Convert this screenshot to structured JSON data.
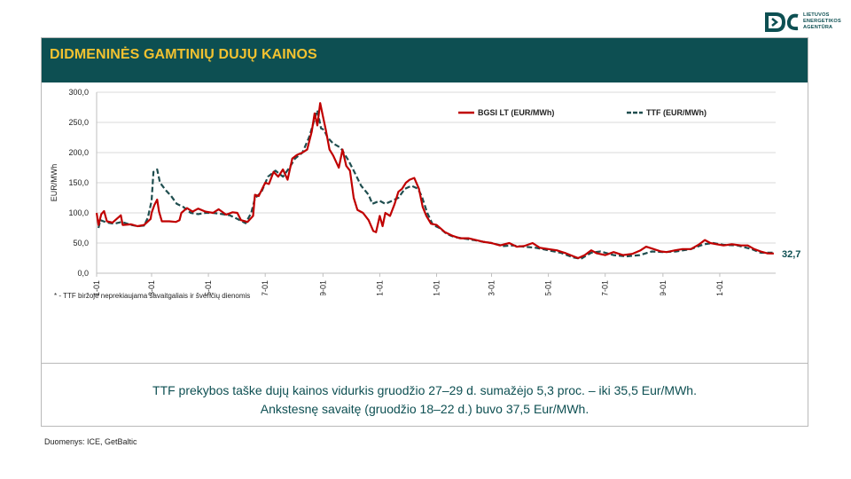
{
  "logo": {
    "name": "lietuvos-energetikos-agentura-logo",
    "lines": [
      "LIETUVOS",
      "ENERGETIKOS",
      "AGENTŪRA"
    ]
  },
  "header": {
    "title": "DIDMENINĖS GAMTINIŲ DUJŲ KAINOS"
  },
  "note": "* - TTF biržoje neprekiaujama savaitgaliais ir švenčių dienomis",
  "summary": {
    "line1": "TTF prekybos taške dujų kainos vidurkis gruodžio 27–29 d. sumažėjo 5,3 proc. – iki 35,5 Eur/MWh.",
    "line2": "Ankstesnę savaitę (gruodžio 18–22 d.) buvo 37,5 Eur/MWh."
  },
  "source": "Duomenys: ICE, GetBaltic",
  "colors": {
    "primary": "#0d4f52",
    "title": "#f2c230",
    "bgsi": "#c00000",
    "ttf": "#1f4e4f",
    "grid": "#d9d9d9"
  },
  "chart_data": {
    "type": "line",
    "ylabel": "EUR/MWh",
    "ylim": [
      0,
      300
    ],
    "yticks": [
      "0,0",
      "50,0",
      "100,0",
      "150,0",
      "200,0",
      "250,0",
      "300,0"
    ],
    "xticks": [
      "2022-01-01",
      "2022-03-01",
      "2022-05-01",
      "2022-07-01",
      "2022-09-01",
      "2022-11-01",
      "2023-01-01",
      "2023-03-01",
      "2023-05-01",
      "2023-07-01",
      "2023-09-01",
      "2023-11-01"
    ],
    "grid": "horizontal",
    "legend_position": "top-right",
    "end_label": "32,7",
    "series": [
      {
        "name": "BGSI LT (EUR/MWh)",
        "style": "solid",
        "points": [
          [
            "2022-01-01",
            100
          ],
          [
            "2022-01-03",
            80
          ],
          [
            "2022-01-06",
            98
          ],
          [
            "2022-01-09",
            103
          ],
          [
            "2022-01-12",
            86
          ],
          [
            "2022-01-18",
            84
          ],
          [
            "2022-01-24",
            92
          ],
          [
            "2022-01-27",
            96
          ],
          [
            "2022-01-29",
            80
          ],
          [
            "2022-02-07",
            81
          ],
          [
            "2022-02-14",
            78
          ],
          [
            "2022-02-21",
            80
          ],
          [
            "2022-02-28",
            90
          ],
          [
            "2022-03-01",
            100
          ],
          [
            "2022-03-04",
            113
          ],
          [
            "2022-03-07",
            122
          ],
          [
            "2022-03-09",
            102
          ],
          [
            "2022-03-12",
            86
          ],
          [
            "2022-03-20",
            86
          ],
          [
            "2022-03-27",
            85
          ],
          [
            "2022-03-31",
            88
          ],
          [
            "2022-04-02",
            100
          ],
          [
            "2022-04-08",
            108
          ],
          [
            "2022-04-14",
            102
          ],
          [
            "2022-04-20",
            107
          ],
          [
            "2022-04-28",
            102
          ],
          [
            "2022-05-06",
            100
          ],
          [
            "2022-05-12",
            106
          ],
          [
            "2022-05-20",
            97
          ],
          [
            "2022-05-27",
            101
          ],
          [
            "2022-06-01",
            100
          ],
          [
            "2022-06-05",
            88
          ],
          [
            "2022-06-12",
            85
          ],
          [
            "2022-06-18",
            95
          ],
          [
            "2022-06-20",
            130
          ],
          [
            "2022-06-24",
            128
          ],
          [
            "2022-07-01",
            150
          ],
          [
            "2022-07-05",
            148
          ],
          [
            "2022-07-10",
            168
          ],
          [
            "2022-07-15",
            160
          ],
          [
            "2022-07-20",
            172
          ],
          [
            "2022-07-25",
            155
          ],
          [
            "2022-07-30",
            190
          ],
          [
            "2022-08-04",
            196
          ],
          [
            "2022-08-10",
            200
          ],
          [
            "2022-08-15",
            205
          ],
          [
            "2022-08-20",
            235
          ],
          [
            "2022-08-23",
            265
          ],
          [
            "2022-08-26",
            245
          ],
          [
            "2022-08-29",
            282
          ],
          [
            "2022-09-01",
            260
          ],
          [
            "2022-09-04",
            238
          ],
          [
            "2022-09-08",
            205
          ],
          [
            "2022-09-12",
            195
          ],
          [
            "2022-09-18",
            175
          ],
          [
            "2022-09-22",
            205
          ],
          [
            "2022-09-26",
            178
          ],
          [
            "2022-09-30",
            170
          ],
          [
            "2022-10-04",
            125
          ],
          [
            "2022-10-08",
            105
          ],
          [
            "2022-10-14",
            100
          ],
          [
            "2022-10-20",
            88
          ],
          [
            "2022-10-25",
            70
          ],
          [
            "2022-10-28",
            68
          ],
          [
            "2022-11-01",
            95
          ],
          [
            "2022-11-04",
            78
          ],
          [
            "2022-11-07",
            100
          ],
          [
            "2022-11-12",
            95
          ],
          [
            "2022-11-17",
            115
          ],
          [
            "2022-11-21",
            135
          ],
          [
            "2022-11-25",
            140
          ],
          [
            "2022-11-29",
            150
          ],
          [
            "2022-12-03",
            155
          ],
          [
            "2022-12-08",
            158
          ],
          [
            "2022-12-13",
            140
          ],
          [
            "2022-12-17",
            110
          ],
          [
            "2022-12-21",
            95
          ],
          [
            "2022-12-26",
            82
          ],
          [
            "2023-01-01",
            80
          ],
          [
            "2023-01-10",
            68
          ],
          [
            "2023-01-18",
            62
          ],
          [
            "2023-01-26",
            58
          ],
          [
            "2023-02-04",
            58
          ],
          [
            "2023-02-12",
            55
          ],
          [
            "2023-02-20",
            52
          ],
          [
            "2023-03-01",
            50
          ],
          [
            "2023-03-10",
            46
          ],
          [
            "2023-03-20",
            50
          ],
          [
            "2023-03-28",
            44
          ],
          [
            "2023-04-05",
            45
          ],
          [
            "2023-04-14",
            50
          ],
          [
            "2023-04-22",
            42
          ],
          [
            "2023-05-01",
            40
          ],
          [
            "2023-05-10",
            38
          ],
          [
            "2023-05-20",
            33
          ],
          [
            "2023-05-28",
            28
          ],
          [
            "2023-06-02",
            25
          ],
          [
            "2023-06-09",
            30
          ],
          [
            "2023-06-16",
            38
          ],
          [
            "2023-06-22",
            33
          ],
          [
            "2023-07-01",
            30
          ],
          [
            "2023-07-10",
            35
          ],
          [
            "2023-07-20",
            30
          ],
          [
            "2023-07-30",
            32
          ],
          [
            "2023-08-08",
            38
          ],
          [
            "2023-08-14",
            44
          ],
          [
            "2023-08-22",
            40
          ],
          [
            "2023-08-30",
            36
          ],
          [
            "2023-09-05",
            35
          ],
          [
            "2023-09-14",
            38
          ],
          [
            "2023-09-22",
            40
          ],
          [
            "2023-10-01",
            40
          ],
          [
            "2023-10-10",
            48
          ],
          [
            "2023-10-16",
            55
          ],
          [
            "2023-10-22",
            50
          ],
          [
            "2023-10-29",
            48
          ],
          [
            "2023-11-05",
            46
          ],
          [
            "2023-11-14",
            48
          ],
          [
            "2023-11-24",
            46
          ],
          [
            "2023-12-01",
            46
          ],
          [
            "2023-12-08",
            40
          ],
          [
            "2023-12-15",
            36
          ],
          [
            "2023-12-22",
            33
          ],
          [
            "2023-12-29",
            32.7
          ]
        ]
      },
      {
        "name": "TTF (EUR/MWh)",
        "style": "dashed",
        "points": [
          [
            "2022-01-03",
            75
          ],
          [
            "2022-01-05",
            88
          ],
          [
            "2022-01-12",
            84
          ],
          [
            "2022-01-20",
            82
          ],
          [
            "2022-01-28",
            85
          ],
          [
            "2022-02-07",
            80
          ],
          [
            "2022-02-14",
            78
          ],
          [
            "2022-02-21",
            79
          ],
          [
            "2022-02-25",
            92
          ],
          [
            "2022-03-01",
            120
          ],
          [
            "2022-03-03",
            168
          ],
          [
            "2022-03-07",
            172
          ],
          [
            "2022-03-10",
            150
          ],
          [
            "2022-03-16",
            138
          ],
          [
            "2022-03-22",
            128
          ],
          [
            "2022-03-28",
            115
          ],
          [
            "2022-04-04",
            110
          ],
          [
            "2022-04-12",
            100
          ],
          [
            "2022-04-20",
            98
          ],
          [
            "2022-04-28",
            100
          ],
          [
            "2022-05-06",
            100
          ],
          [
            "2022-05-16",
            98
          ],
          [
            "2022-05-24",
            96
          ],
          [
            "2022-06-01",
            90
          ],
          [
            "2022-06-10",
            83
          ],
          [
            "2022-06-16",
            100
          ],
          [
            "2022-06-20",
            124
          ],
          [
            "2022-06-27",
            135
          ],
          [
            "2022-07-04",
            160
          ],
          [
            "2022-07-12",
            170
          ],
          [
            "2022-07-20",
            160
          ],
          [
            "2022-07-27",
            175
          ],
          [
            "2022-08-02",
            190
          ],
          [
            "2022-08-10",
            200
          ],
          [
            "2022-08-17",
            225
          ],
          [
            "2022-08-22",
            250
          ],
          [
            "2022-08-26",
            270
          ],
          [
            "2022-08-30",
            240
          ],
          [
            "2022-09-02",
            238
          ],
          [
            "2022-09-06",
            225
          ],
          [
            "2022-09-12",
            215
          ],
          [
            "2022-09-20",
            208
          ],
          [
            "2022-09-28",
            188
          ],
          [
            "2022-10-04",
            170
          ],
          [
            "2022-10-12",
            145
          ],
          [
            "2022-10-20",
            130
          ],
          [
            "2022-10-24",
            115
          ],
          [
            "2022-11-01",
            120
          ],
          [
            "2022-11-07",
            115
          ],
          [
            "2022-11-14",
            120
          ],
          [
            "2022-11-21",
            125
          ],
          [
            "2022-11-28",
            140
          ],
          [
            "2022-12-05",
            145
          ],
          [
            "2022-12-12",
            140
          ],
          [
            "2022-12-16",
            128
          ],
          [
            "2022-12-22",
            100
          ],
          [
            "2022-12-28",
            80
          ],
          [
            "2023-01-04",
            75
          ],
          [
            "2023-01-12",
            65
          ],
          [
            "2023-01-20",
            60
          ],
          [
            "2023-02-01",
            57
          ],
          [
            "2023-02-10",
            55
          ],
          [
            "2023-02-20",
            52
          ],
          [
            "2023-03-01",
            50
          ],
          [
            "2023-03-14",
            45
          ],
          [
            "2023-03-24",
            46
          ],
          [
            "2023-04-05",
            44
          ],
          [
            "2023-04-18",
            42
          ],
          [
            "2023-05-01",
            38
          ],
          [
            "2023-05-14",
            34
          ],
          [
            "2023-05-28",
            26
          ],
          [
            "2023-06-05",
            24
          ],
          [
            "2023-06-16",
            34
          ],
          [
            "2023-06-26",
            36
          ],
          [
            "2023-07-10",
            30
          ],
          [
            "2023-07-24",
            28
          ],
          [
            "2023-08-07",
            30
          ],
          [
            "2023-08-20",
            36
          ],
          [
            "2023-09-01",
            35
          ],
          [
            "2023-09-15",
            36
          ],
          [
            "2023-10-01",
            40
          ],
          [
            "2023-10-15",
            48
          ],
          [
            "2023-10-25",
            50
          ],
          [
            "2023-11-05",
            47
          ],
          [
            "2023-11-20",
            46
          ],
          [
            "2023-12-05",
            40
          ],
          [
            "2023-12-15",
            34
          ],
          [
            "2023-12-29",
            34
          ]
        ]
      }
    ]
  }
}
